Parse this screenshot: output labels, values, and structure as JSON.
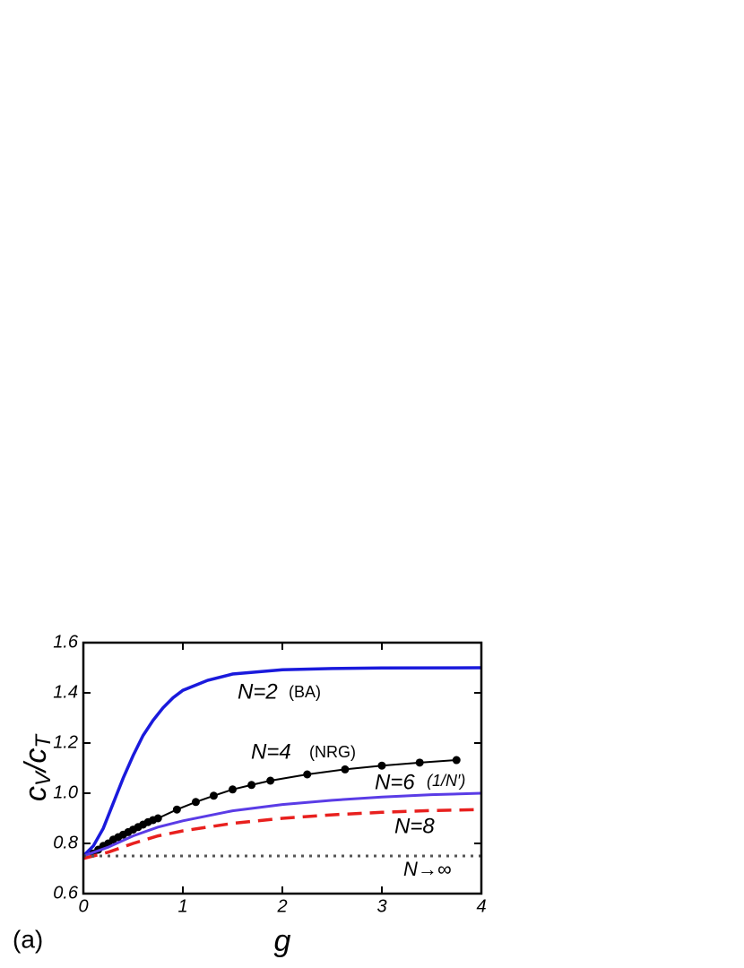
{
  "chart_data": {
    "type": "line",
    "panel_label": "(a)",
    "xlabel": "g",
    "ylabel": [
      "c",
      "V",
      "/c",
      "T"
    ],
    "xlim": [
      0,
      4
    ],
    "ylim": [
      0.6,
      1.6
    ],
    "xticks": [
      0,
      1,
      2,
      3,
      4
    ],
    "yticks": [
      {
        "value": 0.6,
        "label": "0.6"
      },
      {
        "value": 0.8,
        "label": "0.8"
      },
      {
        "value": 1.0,
        "label": "1.0"
      },
      {
        "value": 1.2,
        "label": "1.2"
      },
      {
        "value": 1.4,
        "label": "1.4"
      },
      {
        "value": 1.6,
        "label": "1.6"
      }
    ],
    "series": [
      {
        "color": "#1a1adc",
        "style": "solid",
        "width": 3.5,
        "x": [
          0,
          0.1,
          0.2,
          0.3,
          0.4,
          0.5,
          0.6,
          0.7,
          0.8,
          0.9,
          1,
          1.25,
          1.5,
          2,
          2.5,
          3,
          4
        ],
        "values": [
          0.75,
          0.79,
          0.86,
          0.96,
          1.06,
          1.15,
          1.23,
          1.29,
          1.34,
          1.38,
          1.41,
          1.45,
          1.475,
          1.492,
          1.497,
          1.499,
          1.5
        ]
      },
      {
        "color": "#000000",
        "style": "solid",
        "width": 2,
        "markers": true,
        "x": [
          0.1,
          0.15,
          0.2,
          0.25,
          0.3,
          0.35,
          0.4,
          0.45,
          0.5,
          0.55,
          0.6,
          0.65,
          0.7,
          0.75,
          0.94,
          1.13,
          1.31,
          1.5,
          1.69,
          1.88,
          2.25,
          2.63,
          3.0,
          3.38,
          3.75
        ],
        "values": [
          0.76,
          0.775,
          0.79,
          0.8,
          0.815,
          0.825,
          0.835,
          0.845,
          0.855,
          0.865,
          0.875,
          0.885,
          0.893,
          0.9,
          0.935,
          0.965,
          0.99,
          1.015,
          1.033,
          1.05,
          1.075,
          1.095,
          1.11,
          1.122,
          1.132
        ]
      },
      {
        "color": "#5a3ce6",
        "style": "solid",
        "width": 3,
        "x": [
          0,
          0.25,
          0.5,
          0.75,
          1,
          1.5,
          2,
          2.5,
          3,
          3.5,
          4
        ],
        "values": [
          0.75,
          0.785,
          0.83,
          0.865,
          0.89,
          0.93,
          0.955,
          0.972,
          0.985,
          0.994,
          1.0
        ]
      },
      {
        "color": "#e8201e",
        "style": "dashed",
        "width": 3.5,
        "x": [
          0,
          0.25,
          0.5,
          0.75,
          1,
          1.5,
          2,
          2.5,
          3,
          3.5,
          4
        ],
        "values": [
          0.74,
          0.765,
          0.8,
          0.83,
          0.85,
          0.88,
          0.9,
          0.914,
          0.924,
          0.931,
          0.935
        ]
      },
      {
        "color": "#555555",
        "style": "dotted",
        "width": 3,
        "x": [
          0,
          4
        ],
        "values": [
          0.75,
          0.75
        ]
      }
    ],
    "annotations": [
      "N=2",
      "(BA)",
      "N=4",
      "(NRG)",
      "N=6",
      "(1/N′)",
      "N=8",
      "N→∞"
    ]
  }
}
